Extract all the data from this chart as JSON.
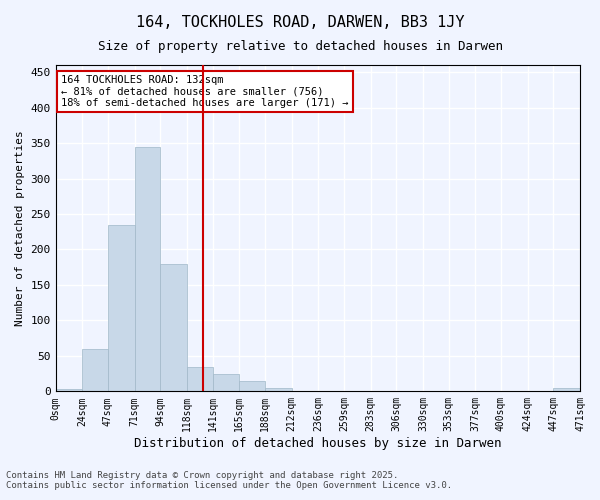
{
  "title": "164, TOCKHOLES ROAD, DARWEN, BB3 1JY",
  "subtitle": "Size of property relative to detached houses in Darwen",
  "xlabel": "Distribution of detached houses by size in Darwen",
  "ylabel": "Number of detached properties",
  "annotation_title": "164 TOCKHOLES ROAD: 132sqm",
  "annotation_line1": "← 81% of detached houses are smaller (756)",
  "annotation_line2": "18% of semi-detached houses are larger (171) →",
  "property_line_x": 132,
  "bar_categories": [
    "0sqm",
    "24sqm",
    "47sqm",
    "71sqm",
    "94sqm",
    "118sqm",
    "141sqm",
    "165sqm",
    "188sqm",
    "212sqm",
    "236sqm",
    "259sqm",
    "283sqm",
    "306sqm",
    "330sqm",
    "353sqm",
    "377sqm",
    "400sqm",
    "424sqm",
    "447sqm",
    "471sqm"
  ],
  "bar_edges": [
    0,
    24,
    47,
    71,
    94,
    118,
    141,
    165,
    188,
    212,
    236,
    259,
    283,
    306,
    330,
    353,
    377,
    400,
    424,
    447,
    471
  ],
  "bar_values": [
    3,
    60,
    235,
    345,
    180,
    35,
    25,
    15,
    5,
    0,
    0,
    0,
    0,
    0,
    0,
    0,
    0,
    0,
    0,
    5
  ],
  "bar_color": "#c8d8e8",
  "bar_edge_color": "#a0b8c8",
  "vline_color": "#cc0000",
  "annotation_box_color": "#ffffff",
  "annotation_box_edge": "#cc0000",
  "background_color": "#f0f4ff",
  "grid_color": "#ffffff",
  "ylim": [
    0,
    460
  ],
  "yticks": [
    0,
    50,
    100,
    150,
    200,
    250,
    300,
    350,
    400,
    450
  ],
  "footnote1": "Contains HM Land Registry data © Crown copyright and database right 2025.",
  "footnote2": "Contains public sector information licensed under the Open Government Licence v3.0."
}
